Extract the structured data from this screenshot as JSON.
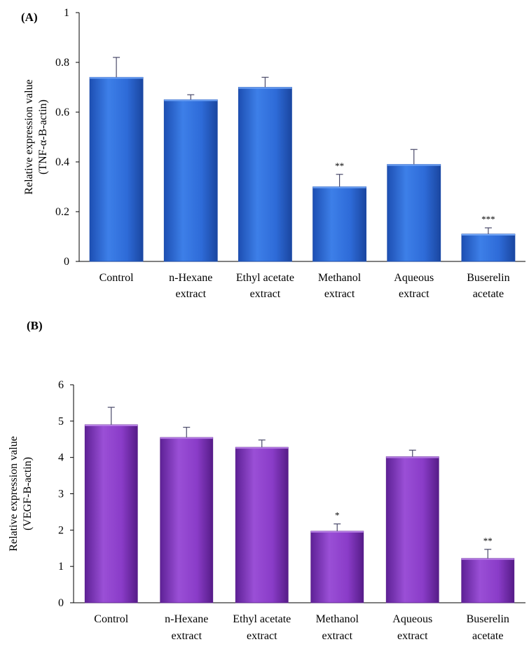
{
  "colors": {
    "panel_a_bar": "#2f6fe0",
    "panel_a_bar_dark": "#1a49a8",
    "panel_b_bar": "#8a3cc8",
    "panel_b_bar_dark": "#5a1f8c",
    "axis": "#000000",
    "error_bar": "#4a4a6a"
  },
  "chart_data": [
    {
      "type": "bar",
      "panel_label": "(A)",
      "categories": [
        [
          "Control"
        ],
        [
          "n-Hexane",
          "extract"
        ],
        [
          "Ethyl acetate",
          "extract"
        ],
        [
          "Methanol",
          "extract"
        ],
        [
          "Aqueous",
          "extract"
        ],
        [
          "Buserelin",
          "acetate"
        ]
      ],
      "values": [
        0.74,
        0.65,
        0.7,
        0.3,
        0.39,
        0.11
      ],
      "errors": [
        0.08,
        0.02,
        0.04,
        0.05,
        0.06,
        0.025
      ],
      "significance": [
        "",
        "",
        "",
        "**",
        "",
        "***"
      ],
      "ylabel_lines": [
        "Relative expression value",
        "(TNF-α-B-actin)"
      ],
      "ylim": [
        0,
        1
      ],
      "yticks": [
        0,
        0.2,
        0.4,
        0.6,
        0.8,
        1
      ],
      "ytick_labels": [
        "0",
        "0.2",
        "0.4",
        "0.6",
        "0.8",
        "1"
      ],
      "grid": false
    },
    {
      "type": "bar",
      "panel_label": "(B)",
      "categories": [
        [
          "Control"
        ],
        [
          "n-Hexane",
          "extract"
        ],
        [
          "Ethyl acetate",
          "extract"
        ],
        [
          "Methanol",
          "extract"
        ],
        [
          "Aqueous",
          "extract"
        ],
        [
          "Buserelin",
          "acetate"
        ]
      ],
      "values": [
        4.9,
        4.55,
        4.28,
        1.97,
        4.02,
        1.22
      ],
      "errors": [
        0.48,
        0.28,
        0.2,
        0.2,
        0.18,
        0.25
      ],
      "significance": [
        "",
        "",
        "",
        "*",
        "",
        "**"
      ],
      "ylabel_lines": [
        "Relative expression value",
        "(VEGF-B-actin)"
      ],
      "ylim": [
        0,
        6
      ],
      "yticks": [
        0,
        1,
        2,
        3,
        4,
        5,
        6
      ],
      "ytick_labels": [
        "0",
        "1",
        "2",
        "3",
        "4",
        "5",
        "6"
      ],
      "grid": false
    }
  ]
}
